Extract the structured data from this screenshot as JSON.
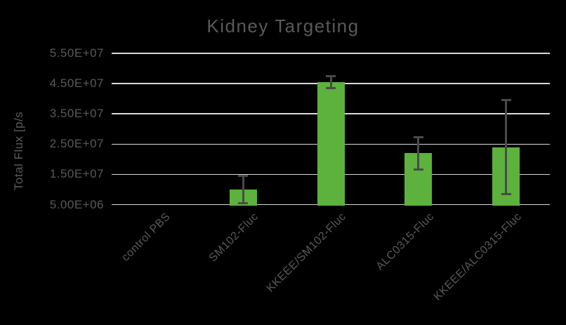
{
  "title": "Kidney Targeting",
  "y_axis_title": "Total Flux [p/s",
  "colors": {
    "background": "#000000",
    "bar": "#5CB23C",
    "gridline": "#D9D9D9",
    "text": "#595959",
    "error_bar": "#4A4A4A"
  },
  "chart_data": {
    "type": "bar",
    "title": "Kidney Targeting",
    "xlabel": "",
    "ylabel": "Total Flux [p/s",
    "ylim": [
      5000000,
      55000000
    ],
    "grid": true,
    "legend_position": "none",
    "yticks": [
      {
        "value": 5000000,
        "label": "5.00E+06"
      },
      {
        "value": 15000000,
        "label": "1.50E+07"
      },
      {
        "value": 25000000,
        "label": "2.50E+07"
      },
      {
        "value": 35000000,
        "label": "3.50E+07"
      },
      {
        "value": 45000000,
        "label": "4.50E+07"
      },
      {
        "value": 55000000,
        "label": "5.50E+07"
      }
    ],
    "categories": [
      "control PBS",
      "SM102-Fluc",
      "KKEEE/SM102-Fluc",
      "ALC0315-Fluc",
      "KKEEE/ALC0315-Fluc"
    ],
    "values": [
      5000000,
      10000000,
      45500000,
      22000000,
      24000000
    ],
    "error_bars": [
      null,
      4500000,
      2000000,
      5300000,
      15500000
    ]
  }
}
